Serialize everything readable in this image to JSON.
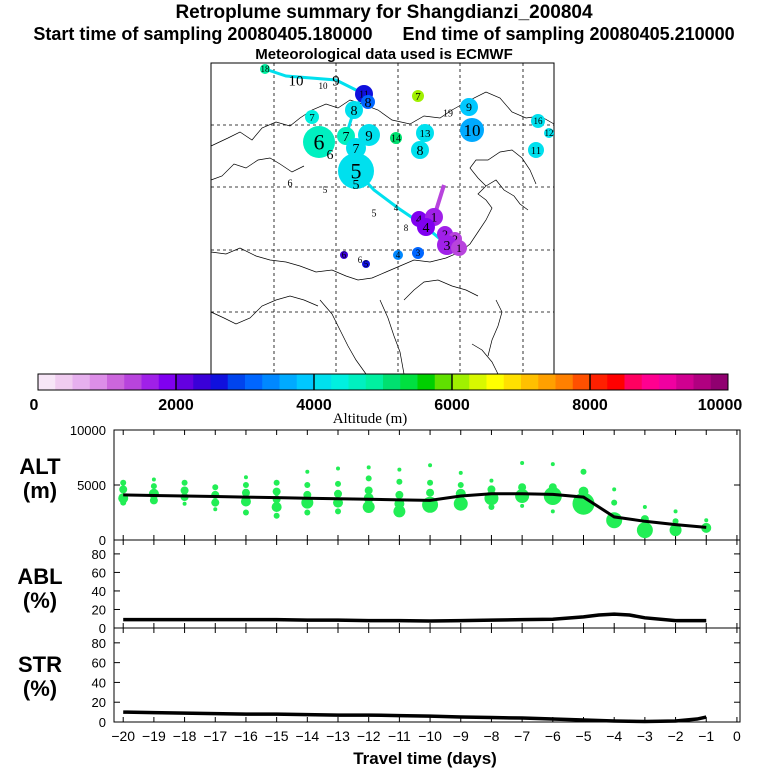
{
  "header": {
    "title": "Retroplume summary for Shangdianzi_200804",
    "start_label": "Start time of sampling 20080405.180000",
    "end_label": "End time of sampling 20080405.210000",
    "met_label": "Meteorological data used is ECMWF"
  },
  "colorbar": {
    "label": "Altitude (m)",
    "ticks": [
      "0",
      "2000",
      "4000",
      "6000",
      "8000",
      "10000"
    ],
    "colors": [
      "#f7e6f7",
      "#f0ccf0",
      "#e6b0ee",
      "#dd8ee8",
      "#cc66dd",
      "#b844dd",
      "#a020e8",
      "#8000f0",
      "#6400e0",
      "#3a00d8",
      "#1010dd",
      "#0044ee",
      "#0066ff",
      "#0088ff",
      "#00aaff",
      "#00c8ff",
      "#00e0ee",
      "#00f0e0",
      "#00f0c0",
      "#00f0a0",
      "#00e070",
      "#00e040",
      "#00d000",
      "#60e000",
      "#a0f000",
      "#d8f800",
      "#ffff00",
      "#ffe000",
      "#ffc000",
      "#ffa000",
      "#ff8000",
      "#ff5000",
      "#ff2000",
      "#ff0000",
      "#ff0060",
      "#ff0090",
      "#f000a0",
      "#d00090",
      "#b00080",
      "#900070"
    ]
  },
  "map": {
    "plume_labels": [
      {
        "t": "18",
        "x": 265,
        "y": 69,
        "r": 5,
        "c": "#00f0a0",
        "fs": 9
      },
      {
        "t": "10",
        "x": 296,
        "y": 80,
        "r": 0,
        "c": "#00e0ee",
        "fs": 15
      },
      {
        "t": "10",
        "x": 323,
        "y": 86,
        "r": 0,
        "c": "#00e0ee",
        "fs": 9
      },
      {
        "t": "9",
        "x": 336,
        "y": 80,
        "r": 0,
        "c": "#00e0ee",
        "fs": 15
      },
      {
        "t": "11",
        "x": 364,
        "y": 94,
        "r": 9,
        "c": "#1010dd",
        "fs": 10
      },
      {
        "t": "8",
        "x": 368,
        "y": 102,
        "r": 7,
        "c": "#0066ff",
        "fs": 14
      },
      {
        "t": "8",
        "x": 354,
        "y": 110,
        "r": 9,
        "c": "#00e0ee",
        "fs": 14
      },
      {
        "t": "7",
        "x": 418,
        "y": 96,
        "r": 6,
        "c": "#a0f000",
        "fs": 11
      },
      {
        "t": "19",
        "x": 448,
        "y": 113,
        "r": 0,
        "c": "#00f0c0",
        "fs": 10
      },
      {
        "t": "9",
        "x": 469,
        "y": 107,
        "r": 9,
        "c": "#00c8ff",
        "fs": 12
      },
      {
        "t": "10",
        "x": 472,
        "y": 130,
        "r": 12,
        "c": "#00aaff",
        "fs": 17
      },
      {
        "t": "16",
        "x": 538,
        "y": 121,
        "r": 7,
        "c": "#00e0ee",
        "fs": 9
      },
      {
        "t": "12",
        "x": 549,
        "y": 133,
        "r": 5,
        "c": "#00e0ee",
        "fs": 9
      },
      {
        "t": "11",
        "x": 536,
        "y": 150,
        "r": 8,
        "c": "#00e0ee",
        "fs": 11
      },
      {
        "t": "7",
        "x": 312,
        "y": 117,
        "r": 7,
        "c": "#00f0e0",
        "fs": 11
      },
      {
        "t": "6",
        "x": 319,
        "y": 142,
        "r": 16,
        "c": "#00f0c0",
        "fs": 22
      },
      {
        "t": "6",
        "x": 330,
        "y": 154,
        "r": 0,
        "c": "#00f0c0",
        "fs": 14
      },
      {
        "t": "7",
        "x": 346,
        "y": 136,
        "r": 9,
        "c": "#00f0c0",
        "fs": 14
      },
      {
        "t": "9",
        "x": 369,
        "y": 135,
        "r": 11,
        "c": "#00e0ee",
        "fs": 15
      },
      {
        "t": "7",
        "x": 356,
        "y": 148,
        "r": 10,
        "c": "#00e0ee",
        "fs": 14
      },
      {
        "t": "14",
        "x": 396,
        "y": 138,
        "r": 6,
        "c": "#00e070",
        "fs": 10
      },
      {
        "t": "13",
        "x": 425,
        "y": 133,
        "r": 9,
        "c": "#00e0ee",
        "fs": 11
      },
      {
        "t": "8",
        "x": 420,
        "y": 150,
        "r": 9,
        "c": "#00e0ee",
        "fs": 14
      },
      {
        "t": "5",
        "x": 356,
        "y": 171,
        "r": 18,
        "c": "#00e0ee",
        "fs": 22
      },
      {
        "t": "5",
        "x": 356,
        "y": 184,
        "r": 0,
        "c": "#00e0ee",
        "fs": 14
      },
      {
        "t": "6",
        "x": 290,
        "y": 183,
        "r": 0,
        "c": "#00e070",
        "fs": 10
      },
      {
        "t": "5",
        "x": 325,
        "y": 190,
        "r": 0,
        "c": "#00f0c0",
        "fs": 9
      },
      {
        "t": "4",
        "x": 396,
        "y": 208,
        "r": 0,
        "c": "#0088ff",
        "fs": 9
      },
      {
        "t": "5",
        "x": 374,
        "y": 213,
        "r": 0,
        "c": "#00aaff",
        "fs": 10
      },
      {
        "t": "4",
        "x": 419,
        "y": 219,
        "r": 8,
        "c": "#8000f0",
        "fs": 12
      },
      {
        "t": "1",
        "x": 434,
        "y": 217,
        "r": 9,
        "c": "#a020e8",
        "fs": 13
      },
      {
        "t": "8",
        "x": 406,
        "y": 228,
        "r": 0,
        "c": "#0088ff",
        "fs": 9
      },
      {
        "t": "4",
        "x": 426,
        "y": 227,
        "r": 9,
        "c": "#8000f0",
        "fs": 14
      },
      {
        "t": "2",
        "x": 445,
        "y": 234,
        "r": 8,
        "c": "#a020e8",
        "fs": 12
      },
      {
        "t": "2",
        "x": 455,
        "y": 239,
        "r": 7,
        "c": "#b844dd",
        "fs": 12
      },
      {
        "t": "3",
        "x": 447,
        "y": 245,
        "r": 10,
        "c": "#a020e8",
        "fs": 14
      },
      {
        "t": "1",
        "x": 459,
        "y": 248,
        "r": 8,
        "c": "#b844dd",
        "fs": 12
      },
      {
        "t": "6",
        "x": 344,
        "y": 255,
        "r": 4,
        "c": "#3a00d8",
        "fs": 9
      },
      {
        "t": "6",
        "x": 360,
        "y": 260,
        "r": 0,
        "c": "#1010dd",
        "fs": 9
      },
      {
        "t": "5",
        "x": 366,
        "y": 264,
        "r": 4,
        "c": "#1010dd",
        "fs": 9
      },
      {
        "t": "4",
        "x": 398,
        "y": 255,
        "r": 5,
        "c": "#0088ff",
        "fs": 9
      },
      {
        "t": "3",
        "x": 418,
        "y": 253,
        "r": 6,
        "c": "#0066ff",
        "fs": 9
      }
    ]
  },
  "chart_data": [
    {
      "type": "scatter",
      "title": "",
      "panel_label": "ALT\n(m)",
      "ylabel_lines": [
        "ALT",
        "(m)"
      ],
      "ylim": [
        0,
        10000
      ],
      "yticks": [
        "10000",
        "5000",
        "0"
      ],
      "ytick_values": [
        10000,
        5000,
        0
      ],
      "xlim": [
        -20.3,
        0.1
      ],
      "median_line": {
        "x": [
          -20,
          -19,
          -18,
          -17,
          -16,
          -15,
          -14,
          -13,
          -12,
          -11,
          -10,
          -9,
          -8,
          -7,
          -6,
          -5,
          -4,
          -3,
          -2,
          -1
        ],
        "y": [
          4100,
          4050,
          4000,
          3950,
          3900,
          3850,
          3800,
          3750,
          3700,
          3650,
          3600,
          4000,
          4200,
          4200,
          4150,
          3900,
          2100,
          1700,
          1400,
          1150
        ]
      },
      "points": [
        [
          -20,
          3800,
          5
        ],
        [
          -20,
          4600,
          4
        ],
        [
          -20,
          5200,
          3
        ],
        [
          -20,
          3400,
          3
        ],
        [
          -19,
          4200,
          5
        ],
        [
          -19,
          3600,
          4
        ],
        [
          -19,
          4900,
          3
        ],
        [
          -19,
          5500,
          2
        ],
        [
          -18,
          3900,
          4
        ],
        [
          -18,
          4500,
          4
        ],
        [
          -18,
          5200,
          3
        ],
        [
          -18,
          3300,
          2
        ],
        [
          -17,
          3400,
          4
        ],
        [
          -17,
          4100,
          4
        ],
        [
          -17,
          4800,
          3
        ],
        [
          -17,
          2800,
          2
        ],
        [
          -16,
          3500,
          5
        ],
        [
          -16,
          4300,
          4
        ],
        [
          -16,
          5000,
          3
        ],
        [
          -16,
          2500,
          3
        ],
        [
          -16,
          5700,
          2
        ],
        [
          -15,
          3000,
          5
        ],
        [
          -15,
          3700,
          4
        ],
        [
          -15,
          4400,
          4
        ],
        [
          -15,
          5200,
          3
        ],
        [
          -15,
          2200,
          3
        ],
        [
          -14,
          3400,
          6
        ],
        [
          -14,
          4100,
          4
        ],
        [
          -14,
          5000,
          3
        ],
        [
          -14,
          2500,
          3
        ],
        [
          -14,
          6200,
          2
        ],
        [
          -13,
          3400,
          5
        ],
        [
          -13,
          4200,
          4
        ],
        [
          -13,
          2600,
          3
        ],
        [
          -13,
          5100,
          3
        ],
        [
          -13,
          6500,
          2
        ],
        [
          -12,
          3000,
          6
        ],
        [
          -12,
          3800,
          5
        ],
        [
          -12,
          4500,
          4
        ],
        [
          -12,
          5600,
          3
        ],
        [
          -12,
          6600,
          2
        ],
        [
          -11,
          2600,
          6
        ],
        [
          -11,
          3300,
          5
        ],
        [
          -11,
          4100,
          4
        ],
        [
          -11,
          5300,
          3
        ],
        [
          -11,
          6400,
          2
        ],
        [
          -10,
          3200,
          8
        ],
        [
          -10,
          4300,
          4
        ],
        [
          -10,
          5200,
          3
        ],
        [
          -10,
          6800,
          2
        ],
        [
          -9,
          3300,
          7
        ],
        [
          -9,
          4200,
          5
        ],
        [
          -9,
          5000,
          3
        ],
        [
          -9,
          6100,
          2
        ],
        [
          -8,
          3800,
          7
        ],
        [
          -8,
          4600,
          4
        ],
        [
          -8,
          3000,
          3
        ],
        [
          -8,
          5400,
          2
        ],
        [
          -7,
          4000,
          7
        ],
        [
          -7,
          4800,
          4
        ],
        [
          -7,
          3100,
          2
        ],
        [
          -7,
          7000,
          2
        ],
        [
          -6,
          4000,
          9
        ],
        [
          -6,
          4800,
          4
        ],
        [
          -6,
          2600,
          2
        ],
        [
          -6,
          6900,
          2
        ],
        [
          -5,
          3300,
          11
        ],
        [
          -5,
          4400,
          5
        ],
        [
          -5,
          6200,
          3
        ],
        [
          -4,
          1800,
          8
        ],
        [
          -4,
          3400,
          3
        ],
        [
          -4,
          4600,
          2
        ],
        [
          -3,
          900,
          8
        ],
        [
          -3,
          1900,
          4
        ],
        [
          -3,
          3000,
          2
        ],
        [
          -2,
          900,
          6
        ],
        [
          -2,
          1700,
          3
        ],
        [
          -2,
          2600,
          2
        ],
        [
          -1,
          1100,
          5
        ],
        [
          -1,
          1800,
          2
        ]
      ]
    },
    {
      "type": "line",
      "panel_label": "ABL\n(%)",
      "ylabel_lines": [
        "ABL",
        "(%)"
      ],
      "ylim": [
        0,
        95
      ],
      "yticks": [
        "80",
        "60",
        "40",
        "20",
        "0"
      ],
      "ytick_values": [
        80,
        60,
        40,
        20,
        0
      ],
      "xlim": [
        -20.3,
        0.1
      ],
      "series": [
        {
          "name": "ABL",
          "x": [
            -20,
            -19,
            -18,
            -17,
            -16,
            -15,
            -14,
            -13,
            -12,
            -11,
            -10,
            -9,
            -8,
            -7,
            -6,
            -5,
            -4.5,
            -4,
            -3.5,
            -3,
            -2,
            -1
          ],
          "y": [
            9,
            9,
            9,
            9,
            9,
            9,
            8.5,
            8.5,
            8,
            8,
            7.5,
            8,
            8.5,
            9,
            9.5,
            12,
            14,
            15,
            14,
            11,
            8,
            8
          ]
        }
      ]
    },
    {
      "type": "line",
      "panel_label": "STR\n(%)",
      "ylabel_lines": [
        "STR",
        "(%)"
      ],
      "ylim": [
        0,
        95
      ],
      "yticks": [
        "80",
        "60",
        "40",
        "20",
        "0"
      ],
      "ytick_values": [
        80,
        60,
        40,
        20,
        0
      ],
      "xlim": [
        -20.3,
        0.1
      ],
      "xlabel": "Travel time (days)",
      "xticks": [
        "−20",
        "−19",
        "−18",
        "−17",
        "−16",
        "−15",
        "−14",
        "−13",
        "−12",
        "−11",
        "−10",
        "−9",
        "−8",
        "−7",
        "−6",
        "−5",
        "−4",
        "−3",
        "−2",
        "−1",
        "0"
      ],
      "xtick_values": [
        -20,
        -19,
        -18,
        -17,
        -16,
        -15,
        -14,
        -13,
        -12,
        -11,
        -10,
        -9,
        -8,
        -7,
        -6,
        -5,
        -4,
        -3,
        -2,
        -1,
        0
      ],
      "series": [
        {
          "name": "STR",
          "x": [
            -20,
            -19,
            -18,
            -17,
            -16,
            -15,
            -14,
            -13,
            -12,
            -11,
            -10,
            -9,
            -8,
            -7,
            -6,
            -5,
            -4,
            -3,
            -2,
            -1.3,
            -1
          ],
          "y": [
            10,
            9.5,
            9,
            8.5,
            8,
            8,
            7.5,
            7,
            7,
            6.5,
            6,
            5,
            4.5,
            4,
            3,
            2,
            1,
            0.5,
            1,
            3,
            5
          ]
        }
      ]
    }
  ]
}
